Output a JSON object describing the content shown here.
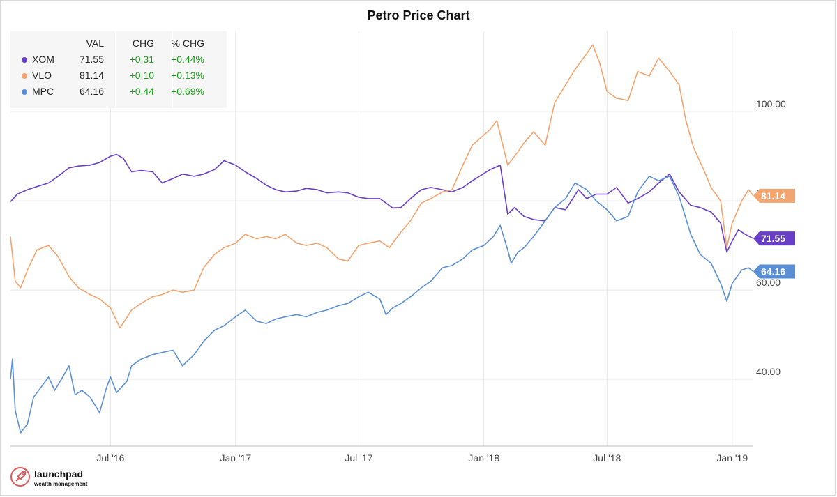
{
  "chart_data": {
    "type": "line",
    "title": "Petro Price Chart",
    "y_axis_side": "right",
    "y_ticks": [
      40,
      60,
      80,
      100
    ],
    "y_tick_labels": [
      "40.00",
      "60.00",
      "80.00",
      "100.00"
    ],
    "x_ticks": [
      "2016-07-01",
      "2017-01-01",
      "2017-07-01",
      "2018-01-01",
      "2018-07-01",
      "2019-01-01"
    ],
    "x_tick_labels": [
      "Jul '16",
      "Jan '17",
      "Jul '17",
      "Jan '18",
      "Jul '18",
      "Jan '19"
    ],
    "xlim": [
      "2016-02-05",
      "2019-02-01"
    ],
    "ylim": [
      25,
      118
    ],
    "grid": true,
    "legend_position": "top-left",
    "legend_headers": {
      "val": "VAL",
      "chg": "CHG",
      "pct": "% CHG"
    },
    "series": [
      {
        "name": "XOM",
        "color": "#6a3fc7",
        "last_label": "71.55",
        "val": "71.55",
        "chg": "+0.31",
        "pct": "+0.44%",
        "points": [
          [
            "2016-02-05",
            79.8
          ],
          [
            "2016-02-15",
            81.5
          ],
          [
            "2016-03-01",
            82.5
          ],
          [
            "2016-03-15",
            83.2
          ],
          [
            "2016-04-01",
            84.0
          ],
          [
            "2016-04-15",
            85.5
          ],
          [
            "2016-05-01",
            87.4
          ],
          [
            "2016-05-15",
            87.8
          ],
          [
            "2016-06-01",
            88.0
          ],
          [
            "2016-06-15",
            88.6
          ],
          [
            "2016-07-01",
            90.0
          ],
          [
            "2016-07-10",
            90.4
          ],
          [
            "2016-07-20",
            89.5
          ],
          [
            "2016-08-01",
            86.5
          ],
          [
            "2016-08-15",
            86.8
          ],
          [
            "2016-09-01",
            86.5
          ],
          [
            "2016-09-15",
            84.0
          ],
          [
            "2016-10-01",
            85.0
          ],
          [
            "2016-10-15",
            86.0
          ],
          [
            "2016-11-01",
            85.5
          ],
          [
            "2016-11-15",
            86.0
          ],
          [
            "2016-12-01",
            87.0
          ],
          [
            "2016-12-15",
            89.0
          ],
          [
            "2017-01-01",
            88.0
          ],
          [
            "2017-01-15",
            86.5
          ],
          [
            "2017-02-01",
            85.0
          ],
          [
            "2017-02-15",
            83.5
          ],
          [
            "2017-03-01",
            82.5
          ],
          [
            "2017-03-15",
            82.0
          ],
          [
            "2017-04-01",
            82.2
          ],
          [
            "2017-04-15",
            82.8
          ],
          [
            "2017-05-01",
            82.5
          ],
          [
            "2017-05-15",
            81.8
          ],
          [
            "2017-06-01",
            82.0
          ],
          [
            "2017-06-15",
            81.8
          ],
          [
            "2017-07-01",
            80.8
          ],
          [
            "2017-07-15",
            80.5
          ],
          [
            "2017-08-01",
            80.5
          ],
          [
            "2017-08-20",
            78.4
          ],
          [
            "2017-09-01",
            78.5
          ],
          [
            "2017-09-15",
            80.5
          ],
          [
            "2017-10-01",
            82.5
          ],
          [
            "2017-10-15",
            83.0
          ],
          [
            "2017-11-01",
            82.5
          ],
          [
            "2017-11-15",
            82.0
          ],
          [
            "2017-12-01",
            83.0
          ],
          [
            "2017-12-15",
            84.5
          ],
          [
            "2018-01-10",
            87.0
          ],
          [
            "2018-01-25",
            88.0
          ],
          [
            "2018-02-05",
            77.0
          ],
          [
            "2018-02-15",
            78.5
          ],
          [
            "2018-03-01",
            76.5
          ],
          [
            "2018-03-15",
            75.8
          ],
          [
            "2018-04-01",
            75.5
          ],
          [
            "2018-04-15",
            78.5
          ],
          [
            "2018-05-01",
            78.0
          ],
          [
            "2018-05-20",
            82.5
          ],
          [
            "2018-06-01",
            80.5
          ],
          [
            "2018-06-15",
            81.5
          ],
          [
            "2018-07-01",
            81.5
          ],
          [
            "2018-07-15",
            83.0
          ],
          [
            "2018-08-01",
            79.5
          ],
          [
            "2018-08-15",
            80.5
          ],
          [
            "2018-09-01",
            82.0
          ],
          [
            "2018-09-15",
            84.0
          ],
          [
            "2018-10-01",
            86.0
          ],
          [
            "2018-10-15",
            82.0
          ],
          [
            "2018-11-01",
            79.0
          ],
          [
            "2018-11-15",
            78.5
          ],
          [
            "2018-12-01",
            77.5
          ],
          [
            "2018-12-15",
            75.0
          ],
          [
            "2018-12-24",
            68.5
          ],
          [
            "2019-01-01",
            71.0
          ],
          [
            "2019-01-10",
            73.5
          ],
          [
            "2019-01-20",
            72.5
          ],
          [
            "2019-02-01",
            71.55
          ]
        ]
      },
      {
        "name": "VLO",
        "color": "#f4a46e",
        "last_label": "81.14",
        "val": "81.14",
        "chg": "+0.10",
        "pct": "+0.13%",
        "points": [
          [
            "2016-02-05",
            72.0
          ],
          [
            "2016-02-12",
            62.0
          ],
          [
            "2016-02-20",
            60.5
          ],
          [
            "2016-03-01",
            64.5
          ],
          [
            "2016-03-15",
            69.0
          ],
          [
            "2016-04-01",
            70.0
          ],
          [
            "2016-04-15",
            67.5
          ],
          [
            "2016-05-01",
            63.0
          ],
          [
            "2016-05-15",
            60.5
          ],
          [
            "2016-06-01",
            59.0
          ],
          [
            "2016-06-15",
            58.0
          ],
          [
            "2016-07-01",
            56.0
          ],
          [
            "2016-07-15",
            51.5
          ],
          [
            "2016-08-01",
            55.5
          ],
          [
            "2016-08-15",
            57.0
          ],
          [
            "2016-09-01",
            58.5
          ],
          [
            "2016-09-15",
            59.0
          ],
          [
            "2016-10-01",
            60.0
          ],
          [
            "2016-10-15",
            59.5
          ],
          [
            "2016-11-01",
            60.0
          ],
          [
            "2016-11-15",
            65.0
          ],
          [
            "2016-12-01",
            68.0
          ],
          [
            "2016-12-15",
            69.5
          ],
          [
            "2017-01-01",
            70.5
          ],
          [
            "2017-01-15",
            72.5
          ],
          [
            "2017-02-01",
            71.5
          ],
          [
            "2017-02-15",
            72.0
          ],
          [
            "2017-03-01",
            71.5
          ],
          [
            "2017-03-15",
            72.5
          ],
          [
            "2017-04-01",
            70.5
          ],
          [
            "2017-04-15",
            70.0
          ],
          [
            "2017-05-01",
            70.5
          ],
          [
            "2017-05-15",
            69.5
          ],
          [
            "2017-06-01",
            67.0
          ],
          [
            "2017-06-15",
            66.5
          ],
          [
            "2017-07-01",
            70.0
          ],
          [
            "2017-07-15",
            70.5
          ],
          [
            "2017-08-01",
            71.0
          ],
          [
            "2017-08-15",
            69.5
          ],
          [
            "2017-09-01",
            73.0
          ],
          [
            "2017-09-15",
            75.5
          ],
          [
            "2017-10-01",
            79.5
          ],
          [
            "2017-10-15",
            80.5
          ],
          [
            "2017-11-01",
            82.0
          ],
          [
            "2017-11-15",
            82.5
          ],
          [
            "2017-12-01",
            88.0
          ],
          [
            "2017-12-15",
            92.5
          ],
          [
            "2018-01-10",
            96.0
          ],
          [
            "2018-01-20",
            98.0
          ],
          [
            "2018-02-05",
            88.0
          ],
          [
            "2018-02-20",
            91.0
          ],
          [
            "2018-03-01",
            93.0
          ],
          [
            "2018-03-15",
            95.5
          ],
          [
            "2018-04-01",
            92.5
          ],
          [
            "2018-04-15",
            102.0
          ],
          [
            "2018-05-01",
            106.0
          ],
          [
            "2018-05-15",
            109.5
          ],
          [
            "2018-06-01",
            113.0
          ],
          [
            "2018-06-10",
            115.0
          ],
          [
            "2018-06-20",
            111.0
          ],
          [
            "2018-07-01",
            104.5
          ],
          [
            "2018-07-15",
            103.0
          ],
          [
            "2018-08-01",
            102.5
          ],
          [
            "2018-08-15",
            109.0
          ],
          [
            "2018-09-01",
            108.0
          ],
          [
            "2018-09-15",
            112.0
          ],
          [
            "2018-10-01",
            109.0
          ],
          [
            "2018-10-15",
            106.0
          ],
          [
            "2018-10-25",
            98.0
          ],
          [
            "2018-11-05",
            92.0
          ],
          [
            "2018-11-20",
            87.0
          ],
          [
            "2018-12-01",
            83.0
          ],
          [
            "2018-12-15",
            80.0
          ],
          [
            "2018-12-24",
            69.5
          ],
          [
            "2019-01-01",
            75.0
          ],
          [
            "2019-01-15",
            80.0
          ],
          [
            "2019-01-25",
            82.5
          ],
          [
            "2019-02-01",
            81.14
          ]
        ]
      },
      {
        "name": "MPC",
        "color": "#5a8fd6",
        "last_label": "64.16",
        "val": "64.16",
        "chg": "+0.44",
        "pct": "+0.69%",
        "points": [
          [
            "2016-02-05",
            40.0
          ],
          [
            "2016-02-08",
            44.5
          ],
          [
            "2016-02-12",
            33.0
          ],
          [
            "2016-02-20",
            28.0
          ],
          [
            "2016-03-01",
            30.0
          ],
          [
            "2016-03-10",
            36.0
          ],
          [
            "2016-03-20",
            38.0
          ],
          [
            "2016-04-01",
            40.5
          ],
          [
            "2016-04-10",
            37.5
          ],
          [
            "2016-04-20",
            40.0
          ],
          [
            "2016-05-01",
            43.0
          ],
          [
            "2016-05-10",
            36.5
          ],
          [
            "2016-05-20",
            37.5
          ],
          [
            "2016-06-01",
            36.0
          ],
          [
            "2016-06-15",
            32.5
          ],
          [
            "2016-06-25",
            38.0
          ],
          [
            "2016-07-01",
            40.5
          ],
          [
            "2016-07-10",
            37.0
          ],
          [
            "2016-07-25",
            39.5
          ],
          [
            "2016-08-01",
            43.0
          ],
          [
            "2016-08-15",
            44.5
          ],
          [
            "2016-09-01",
            45.5
          ],
          [
            "2016-09-15",
            46.0
          ],
          [
            "2016-10-01",
            46.5
          ],
          [
            "2016-10-15",
            43.0
          ],
          [
            "2016-11-01",
            45.5
          ],
          [
            "2016-11-15",
            48.5
          ],
          [
            "2016-12-01",
            51.0
          ],
          [
            "2016-12-15",
            52.0
          ],
          [
            "2017-01-01",
            54.0
          ],
          [
            "2017-01-15",
            55.5
          ],
          [
            "2017-02-01",
            53.0
          ],
          [
            "2017-02-15",
            52.5
          ],
          [
            "2017-03-01",
            53.5
          ],
          [
            "2017-03-15",
            54.0
          ],
          [
            "2017-04-01",
            54.5
          ],
          [
            "2017-04-15",
            54.0
          ],
          [
            "2017-05-01",
            55.0
          ],
          [
            "2017-05-15",
            55.5
          ],
          [
            "2017-06-01",
            56.5
          ],
          [
            "2017-06-15",
            57.0
          ],
          [
            "2017-07-01",
            58.5
          ],
          [
            "2017-07-15",
            59.5
          ],
          [
            "2017-08-01",
            58.0
          ],
          [
            "2017-08-10",
            54.5
          ],
          [
            "2017-08-20",
            56.0
          ],
          [
            "2017-09-01",
            57.0
          ],
          [
            "2017-09-15",
            58.5
          ],
          [
            "2017-10-01",
            60.5
          ],
          [
            "2017-10-15",
            62.0
          ],
          [
            "2017-11-01",
            65.0
          ],
          [
            "2017-11-15",
            65.5
          ],
          [
            "2017-12-01",
            67.0
          ],
          [
            "2017-12-15",
            69.0
          ],
          [
            "2018-01-01",
            70.0
          ],
          [
            "2018-01-15",
            72.0
          ],
          [
            "2018-01-25",
            74.5
          ],
          [
            "2018-02-05",
            69.0
          ],
          [
            "2018-02-10",
            66.0
          ],
          [
            "2018-02-20",
            68.5
          ],
          [
            "2018-03-01",
            69.5
          ],
          [
            "2018-03-15",
            72.0
          ],
          [
            "2018-04-01",
            75.5
          ],
          [
            "2018-04-15",
            78.5
          ],
          [
            "2018-05-01",
            80.5
          ],
          [
            "2018-05-15",
            84.0
          ],
          [
            "2018-06-01",
            82.5
          ],
          [
            "2018-06-15",
            80.0
          ],
          [
            "2018-07-01",
            78.0
          ],
          [
            "2018-07-15",
            75.5
          ],
          [
            "2018-08-01",
            76.5
          ],
          [
            "2018-08-15",
            82.0
          ],
          [
            "2018-09-01",
            85.5
          ],
          [
            "2018-09-15",
            84.5
          ],
          [
            "2018-10-01",
            85.5
          ],
          [
            "2018-10-15",
            81.0
          ],
          [
            "2018-11-01",
            72.5
          ],
          [
            "2018-11-15",
            68.0
          ],
          [
            "2018-12-01",
            66.0
          ],
          [
            "2018-12-15",
            61.5
          ],
          [
            "2018-12-24",
            57.5
          ],
          [
            "2019-01-01",
            61.5
          ],
          [
            "2019-01-15",
            64.5
          ],
          [
            "2019-01-25",
            65.0
          ],
          [
            "2019-02-01",
            64.16
          ]
        ]
      }
    ]
  },
  "logo": {
    "name": "launchpad",
    "tagline": "wealth management"
  }
}
